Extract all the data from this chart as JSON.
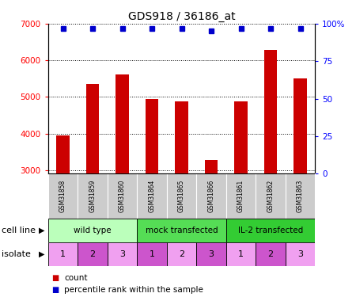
{
  "title": "GDS918 / 36186_at",
  "samples": [
    "GSM31858",
    "GSM31859",
    "GSM31860",
    "GSM31864",
    "GSM31865",
    "GSM31866",
    "GSM31861",
    "GSM31862",
    "GSM31863"
  ],
  "counts": [
    3950,
    5350,
    5620,
    4950,
    4870,
    3280,
    4880,
    6280,
    5500
  ],
  "percentile_ranks": [
    97,
    97,
    97,
    97,
    97,
    95,
    97,
    97,
    97
  ],
  "bar_color": "#cc0000",
  "dot_color": "#0000cc",
  "ylim_left": [
    2900,
    7000
  ],
  "ylim_right": [
    0,
    100
  ],
  "yticks_left": [
    3000,
    4000,
    5000,
    6000,
    7000
  ],
  "yticks_right": [
    0,
    25,
    50,
    75,
    100
  ],
  "cell_line_groups": [
    {
      "label": "wild type",
      "start": 0,
      "end": 3,
      "color": "#bbffbb"
    },
    {
      "label": "mock transfected",
      "start": 3,
      "end": 6,
      "color": "#55dd55"
    },
    {
      "label": "IL-2 transfected",
      "start": 6,
      "end": 9,
      "color": "#33cc33"
    }
  ],
  "isolate_values": [
    1,
    2,
    3,
    1,
    2,
    3,
    1,
    2,
    3
  ],
  "iso_colors": [
    "#f0a0f0",
    "#cc55cc",
    "#f0a0f0",
    "#cc55cc",
    "#f0a0f0",
    "#cc55cc",
    "#f0a0f0",
    "#cc55cc",
    "#f0a0f0"
  ],
  "cell_line_label": "cell line",
  "isolate_label": "isolate",
  "legend_count_label": "count",
  "legend_percentile_label": "percentile rank within the sample",
  "sample_bg_color": "#cccccc"
}
